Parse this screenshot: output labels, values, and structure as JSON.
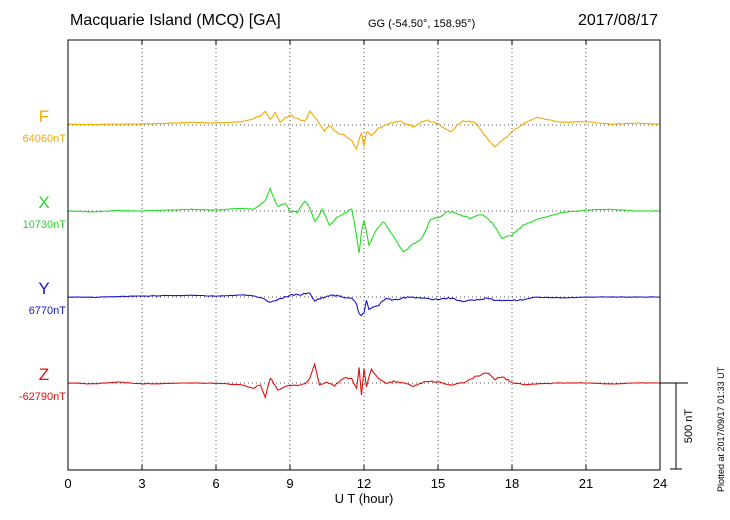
{
  "header": {
    "title": "Macquarie Island (MCQ)  [GA]",
    "coords": "GG (-54.50°, 158.95°)",
    "date": "2017/08/17"
  },
  "footer_note": "Plotted at 2017/09/17 01:33 UT",
  "chart_data": {
    "type": "line",
    "xlabel": "U T (hour)",
    "xlim": [
      0,
      24
    ],
    "x_ticks": [
      "0",
      "3",
      "6",
      "9",
      "12",
      "15",
      "18",
      "21",
      "24"
    ],
    "grid": true,
    "scale_bar": {
      "label": "500 nT",
      "value": 500
    },
    "series": [
      {
        "name": "F",
        "baseline_label": "64060nT",
        "color": "#f2a900",
        "x": [
          0,
          1,
          2,
          3,
          4,
          5,
          6,
          7,
          7.5,
          7.8,
          8.0,
          8.2,
          8.4,
          8.6,
          8.8,
          9.0,
          9.3,
          9.6,
          9.8,
          10.0,
          10.2,
          10.4,
          10.6,
          10.9,
          11.2,
          11.5,
          11.7,
          11.8,
          11.9,
          12.0,
          12.1,
          12.3,
          12.6,
          12.9,
          13.2,
          13.5,
          14.0,
          14.5,
          15.0,
          15.5,
          16.0,
          16.5,
          17.0,
          17.3,
          17.6,
          18.0,
          18.5,
          19.0,
          20.0,
          21.0,
          22.0,
          23.0,
          24.0
        ],
        "y": [
          5,
          2,
          5,
          6,
          10,
          15,
          12,
          18,
          35,
          55,
          80,
          30,
          70,
          15,
          40,
          60,
          35,
          20,
          80,
          40,
          10,
          -30,
          -5,
          -45,
          -60,
          -90,
          -140,
          -80,
          -50,
          -120,
          -40,
          -60,
          -20,
          5,
          15,
          20,
          -10,
          30,
          10,
          -40,
          25,
          15,
          -80,
          -130,
          -90,
          -40,
          10,
          45,
          15,
          20,
          5,
          10,
          5
        ]
      },
      {
        "name": "X",
        "baseline_label": "10730nT",
        "color": "#22dd22",
        "x": [
          0,
          1,
          2,
          3,
          4,
          5,
          6,
          7,
          7.5,
          8.0,
          8.2,
          8.5,
          8.8,
          9.0,
          9.3,
          9.6,
          9.8,
          10.0,
          10.3,
          10.6,
          10.9,
          11.2,
          11.5,
          11.6,
          11.7,
          11.8,
          11.9,
          12.0,
          12.2,
          12.5,
          12.8,
          13.2,
          13.6,
          14.0,
          14.3,
          14.7,
          15.0,
          15.4,
          15.8,
          16.3,
          16.8,
          17.2,
          17.6,
          18.0,
          18.5,
          19.0,
          20.0,
          21.0,
          22.0,
          23.0,
          24.0
        ],
        "y": [
          0,
          -5,
          2,
          0,
          5,
          10,
          5,
          15,
          10,
          60,
          130,
          25,
          45,
          0,
          -10,
          60,
          20,
          -60,
          5,
          -80,
          -40,
          -10,
          10,
          -60,
          -150,
          -240,
          -120,
          -50,
          -200,
          -110,
          -60,
          -150,
          -240,
          -190,
          -170,
          -50,
          -40,
          0,
          -20,
          -40,
          -20,
          -70,
          -160,
          -140,
          -80,
          -50,
          -10,
          5,
          10,
          0,
          0
        ]
      },
      {
        "name": "Y",
        "baseline_label": "6770nT",
        "color": "#1515cc",
        "x": [
          0,
          1,
          2,
          3,
          4,
          5,
          6,
          7,
          7.5,
          7.9,
          8.2,
          8.4,
          8.7,
          9.0,
          9.4,
          9.8,
          10.0,
          10.3,
          10.6,
          10.9,
          11.2,
          11.5,
          11.7,
          11.8,
          11.9,
          12.0,
          12.1,
          12.2,
          12.4,
          12.6,
          12.9,
          13.2,
          13.6,
          14.0,
          14.5,
          15.0,
          15.5,
          16.0,
          16.5,
          17.0,
          17.5,
          18.0,
          18.5,
          19.0,
          20.0,
          21.0,
          22.0,
          23.0,
          24.0
        ],
        "y": [
          0,
          -2,
          3,
          5,
          8,
          10,
          5,
          12,
          8,
          -10,
          -30,
          -25,
          -5,
          10,
          15,
          20,
          -20,
          -5,
          5,
          10,
          0,
          -10,
          -40,
          -100,
          -110,
          -90,
          -20,
          -70,
          -60,
          -45,
          -10,
          -20,
          -5,
          0,
          -10,
          -15,
          -5,
          -25,
          -15,
          -10,
          -20,
          -20,
          -15,
          0,
          -5,
          0,
          0,
          0,
          0
        ]
      },
      {
        "name": "Z",
        "baseline_label": "-62790nT",
        "color": "#e01010",
        "x": [
          0,
          1,
          2,
          3,
          4,
          5,
          6,
          7,
          7.5,
          7.8,
          8.0,
          8.2,
          8.5,
          8.8,
          9.2,
          9.6,
          9.8,
          10.0,
          10.2,
          10.5,
          10.8,
          11.2,
          11.5,
          11.7,
          11.8,
          11.9,
          12.0,
          12.1,
          12.3,
          12.5,
          12.7,
          12.9,
          13.2,
          13.6,
          14.0,
          14.5,
          15.0,
          15.5,
          16.0,
          16.5,
          17.0,
          17.3,
          17.6,
          18.0,
          18.5,
          19.0,
          20.0,
          21.0,
          22.0,
          23.0,
          24.0
        ],
        "y": [
          0,
          -5,
          5,
          -5,
          -3,
          0,
          -2,
          -10,
          -30,
          -10,
          -80,
          30,
          -40,
          -20,
          -15,
          -5,
          30,
          110,
          -10,
          5,
          -15,
          30,
          25,
          -35,
          90,
          -70,
          80,
          -20,
          85,
          40,
          15,
          -5,
          10,
          0,
          -20,
          10,
          5,
          -10,
          0,
          35,
          60,
          20,
          35,
          5,
          -10,
          -5,
          0,
          0,
          -5,
          0,
          0
        ]
      }
    ]
  }
}
